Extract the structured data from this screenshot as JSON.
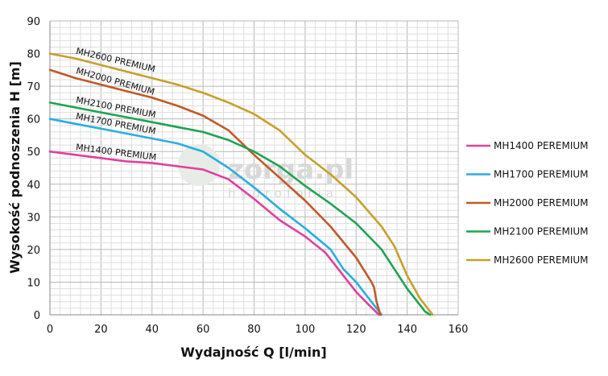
{
  "chart_data": {
    "type": "line",
    "xlabel": "Wydajność Q [l/min]",
    "ylabel": "Wysokość podnoszenia H [m]",
    "xlim": [
      0,
      160
    ],
    "ylim": [
      0,
      90
    ],
    "x_ticks": [
      "0",
      "20",
      "40",
      "60",
      "80",
      "100",
      "120",
      "140",
      "160"
    ],
    "y_ticks": [
      "0",
      "10",
      "20",
      "30",
      "40",
      "50",
      "60",
      "70",
      "80",
      "90"
    ],
    "grid": true,
    "legend_position": "right",
    "watermark": {
      "text": "zorga.pl",
      "sub": "hydroforia"
    },
    "series": [
      {
        "name": "MH1400 PEREMIUM",
        "curve_label": "MH1400 PREMIUM",
        "color": "#e0409e",
        "points": [
          [
            0,
            50
          ],
          [
            10,
            49
          ],
          [
            20,
            48
          ],
          [
            30,
            47
          ],
          [
            40,
            46.5
          ],
          [
            50,
            45.5
          ],
          [
            60,
            44.5
          ],
          [
            70,
            41.5
          ],
          [
            80,
            35.5
          ],
          [
            90,
            29
          ],
          [
            100,
            24
          ],
          [
            108,
            19
          ],
          [
            115,
            12
          ],
          [
            120,
            7
          ],
          [
            125,
            3
          ],
          [
            129,
            0
          ]
        ]
      },
      {
        "name": "MH1700 PEREMIUM",
        "curve_label": "MH1700 PREMIUM",
        "color": "#29aee0",
        "points": [
          [
            0,
            60
          ],
          [
            10,
            58.5
          ],
          [
            20,
            57
          ],
          [
            30,
            55.5
          ],
          [
            40,
            54
          ],
          [
            50,
            52.5
          ],
          [
            60,
            50
          ],
          [
            70,
            45
          ],
          [
            80,
            39
          ],
          [
            90,
            32.5
          ],
          [
            100,
            26.5
          ],
          [
            110,
            20
          ],
          [
            115,
            14
          ],
          [
            120,
            10
          ],
          [
            124,
            6
          ],
          [
            127,
            3
          ],
          [
            130,
            0
          ]
        ]
      },
      {
        "name": "MH2000 PEREMIUM",
        "curve_label": "MH2000 PREMIUM",
        "color": "#c05a28",
        "points": [
          [
            0,
            75
          ],
          [
            10,
            72.5
          ],
          [
            20,
            70.5
          ],
          [
            30,
            68.5
          ],
          [
            40,
            66.5
          ],
          [
            50,
            64
          ],
          [
            60,
            61
          ],
          [
            70,
            56.5
          ],
          [
            80,
            49
          ],
          [
            90,
            42
          ],
          [
            100,
            35
          ],
          [
            110,
            27
          ],
          [
            120,
            17.5
          ],
          [
            126,
            10
          ],
          [
            127,
            8.5
          ],
          [
            128,
            4
          ],
          [
            129.5,
            0
          ]
        ]
      },
      {
        "name": "MH2100 PEREMIUM",
        "curve_label": "MH2100 PREMIUM",
        "color": "#1fa352",
        "points": [
          [
            0,
            65
          ],
          [
            10,
            63.5
          ],
          [
            20,
            62
          ],
          [
            30,
            60.5
          ],
          [
            40,
            59
          ],
          [
            50,
            57.5
          ],
          [
            60,
            56
          ],
          [
            70,
            53.5
          ],
          [
            80,
            50
          ],
          [
            90,
            45.5
          ],
          [
            100,
            39.5
          ],
          [
            110,
            34
          ],
          [
            120,
            28
          ],
          [
            130,
            20
          ],
          [
            140,
            8
          ],
          [
            145,
            3
          ],
          [
            147,
            1
          ],
          [
            149,
            0
          ]
        ]
      },
      {
        "name": "MH2600 PEREMIUM",
        "curve_label": "MH2600 PREMIUM",
        "color": "#c6a12a",
        "points": [
          [
            0,
            80
          ],
          [
            10,
            78.5
          ],
          [
            20,
            76.5
          ],
          [
            30,
            74.5
          ],
          [
            40,
            72.5
          ],
          [
            50,
            70.5
          ],
          [
            60,
            68
          ],
          [
            70,
            65
          ],
          [
            80,
            61.5
          ],
          [
            90,
            56.5
          ],
          [
            100,
            49
          ],
          [
            110,
            43
          ],
          [
            120,
            36
          ],
          [
            130,
            27
          ],
          [
            135,
            21
          ],
          [
            140,
            12
          ],
          [
            145,
            5
          ],
          [
            148,
            2
          ],
          [
            150,
            0
          ]
        ]
      }
    ]
  }
}
